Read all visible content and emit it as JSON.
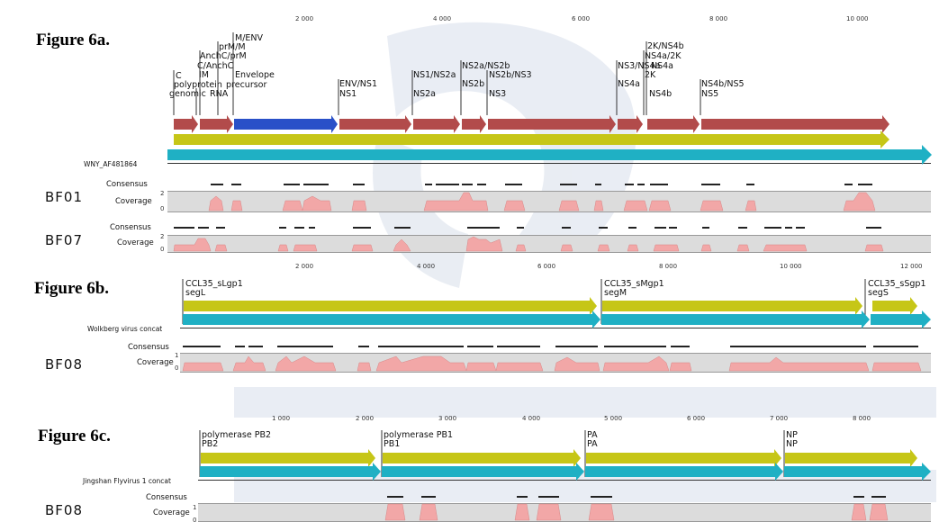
{
  "watermark": {
    "color": "#cfd8e6"
  },
  "colors": {
    "red_arrow": "#b24b4b",
    "blue_arrow": "#2950c8",
    "yellow_arrow": "#c6c617",
    "teal_arrow": "#1fb0c4",
    "coverage_fill": "#f2a7a7",
    "row_bg": "#dcdcdc"
  },
  "fig6a": {
    "title": "Figure 6a.",
    "ticks": [
      "2 000",
      "4 000",
      "6 000",
      "8 000",
      "10 000"
    ],
    "labels": {
      "l_c": "C",
      "l_poly": "polyprotein",
      "l_genomic": "genomic",
      "l_rna": "RNA",
      "l_im": "IM",
      "l_canch": "C/AnchC",
      "l_anch": "AnchC/prM",
      "l_prm": "prM/M",
      "l_menv": "M/ENV",
      "l_env": "Envelope",
      "l_prec": "precursor",
      "l_envns1": "ENV/NS1",
      "l_ns1": "NS1",
      "l_ns1ns2a": "NS1/NS2a",
      "l_ns2a": "NS2a",
      "l_ns2ans2b": "NS2a/NS2b",
      "l_ns2bns3": "NS2b/NS3",
      "l_ns2b": "NS2b",
      "l_ns3": "NS3",
      "l_ns2kns4b": "2K/NS4b",
      "l_ns4a2k": "NS4a/2K",
      "l_ns3ns4a": "NS3/NS4a",
      "l_ns4a": "NS4a",
      "l_2k": "2K",
      "l_ns4a_b": "NS4a",
      "l_ns4b": "NS4b",
      "l_ns4bns5": "NS4b/NS5",
      "l_ns5": "NS5"
    },
    "seq_name": "WNY_AF481864",
    "samples": [
      {
        "name": "BF01",
        "consensus": "Consensus",
        "coverage": "Coverage",
        "axis_top": "2",
        "axis_bottom": "0"
      },
      {
        "name": "BF07",
        "consensus": "Consensus",
        "coverage": "Coverage",
        "axis_top": "2",
        "axis_bottom": "0"
      }
    ]
  },
  "fig6b": {
    "title": "Figure 6b.",
    "ticks": [
      "2 000",
      "4 000",
      "6 000",
      "8 000",
      "10 000",
      "12 000"
    ],
    "labels": {
      "segL_1": "CCL35_sLgp1",
      "segL_2": "segL",
      "segM_1": "CCL35_sMgp1",
      "segM_2": "segM",
      "segS_1": "CCL35_sSgp1",
      "segS_2": "segS"
    },
    "seq_name": "Wolkberg virus concat",
    "samples": [
      {
        "name": "BF08",
        "consensus": "Consensus",
        "coverage": "Coverage",
        "axis_top": "1",
        "axis_bottom": "0"
      }
    ]
  },
  "fig6c": {
    "title": "Figure 6c.",
    "ticks": [
      "1 000",
      "2 000",
      "3 000",
      "4 000",
      "5 000",
      "6 000",
      "7 000",
      "8 000"
    ],
    "labels": {
      "pb2_1": "polymerase PB2",
      "pb2_2": "PB2",
      "pb1_1": "polymerase PB1",
      "pb1_2": "PB1",
      "pa_1": "PA",
      "pa_2": "PA",
      "np_1": "NP",
      "np_2": "NP"
    },
    "seq_name": "Jingshan Flyvirus 1 concat",
    "samples": [
      {
        "name": "BF08",
        "consensus": "Consensus",
        "coverage": "Coverage",
        "axis_top": "1",
        "axis_bottom": "0"
      }
    ]
  }
}
